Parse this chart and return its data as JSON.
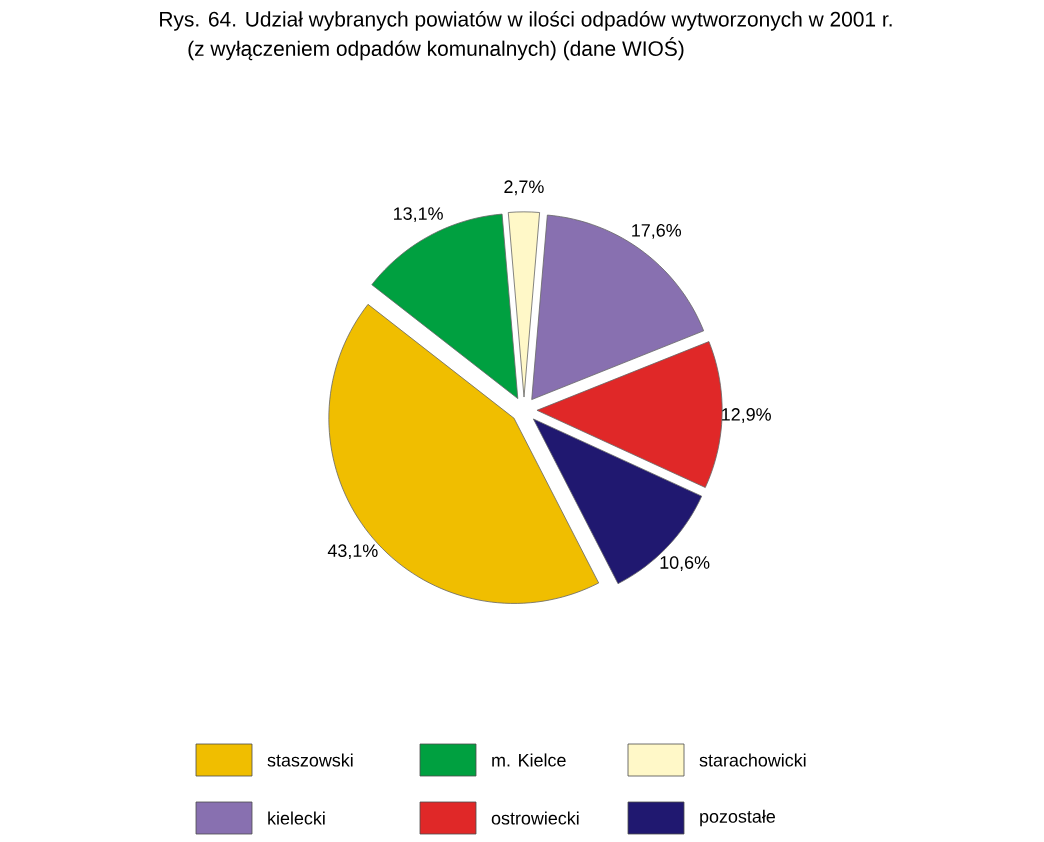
{
  "chart_data": {
    "type": "pie",
    "title": "Rys. 64. Udział wybranych powiatów w ilości odpadów wytworzonych  w 2001 r.",
    "subtitle": "(z wyłączeniem odpadów komunalnych) (dane WIOŚ)",
    "categories": [
      "staszowski",
      "m. Kielce",
      "starachowicki",
      "kielecki",
      "ostrowiecki",
      "pozostałe"
    ],
    "values": [
      43.1,
      13.1,
      2.7,
      17.6,
      12.9,
      10.6
    ],
    "value_labels": [
      "43,1%",
      "13,1%",
      "2,7%",
      "17,6%",
      "12,9%",
      "10,6%"
    ],
    "colors": [
      "#f0be00",
      "#00a040",
      "#fff8c8",
      "#8870b0",
      "#e02828",
      "#201870"
    ],
    "legend": "bottom"
  }
}
